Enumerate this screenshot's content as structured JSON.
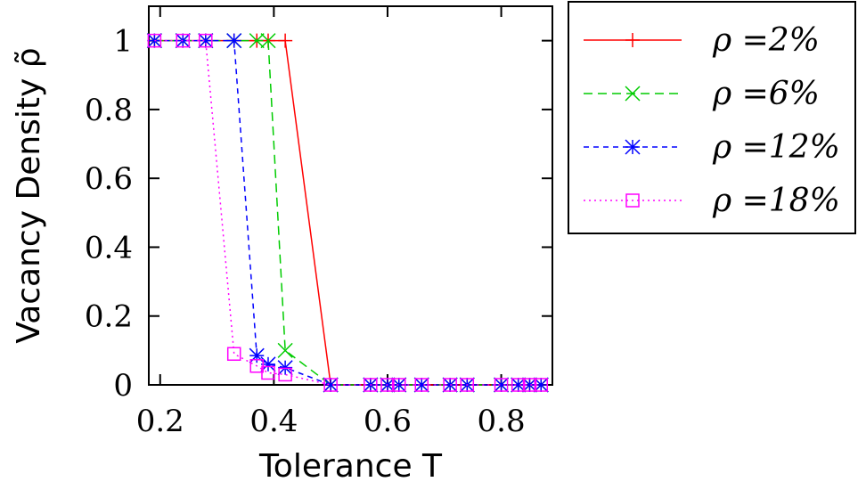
{
  "chart_data": {
    "type": "line",
    "xlabel": "Tolerance T",
    "ylabel": "Vacancy Density ρ̃",
    "xlim": [
      0.18,
      0.89
    ],
    "ylim": [
      0,
      1.1
    ],
    "xticks": [
      0.2,
      0.4,
      0.6,
      0.8
    ],
    "xtick_labels": [
      "0.2",
      "0.4",
      "0.6",
      "0.8"
    ],
    "yticks": [
      0,
      0.2,
      0.4,
      0.6,
      0.8,
      1
    ],
    "ytick_labels": [
      "0",
      "0.2",
      "0.4",
      "0.6",
      "0.8",
      "1"
    ],
    "grid": false,
    "legend": "outside-right",
    "series": [
      {
        "name": "ρ =2%",
        "color": "#ff0000",
        "dash": "solid",
        "marker": "plus",
        "x": [
          0.19,
          0.24,
          0.28,
          0.33,
          0.37,
          0.39,
          0.42,
          0.5,
          0.57,
          0.6,
          0.62,
          0.66,
          0.71,
          0.74,
          0.8,
          0.83,
          0.85,
          0.87
        ],
        "y": [
          1,
          1,
          1,
          1,
          1,
          1,
          1,
          0,
          0,
          0,
          0,
          0,
          0,
          0,
          0,
          0,
          0,
          0
        ]
      },
      {
        "name": "ρ =6%",
        "color": "#00cc00",
        "dash": "dashed",
        "marker": "x",
        "x": [
          0.19,
          0.24,
          0.28,
          0.33,
          0.37,
          0.39,
          0.42,
          0.5,
          0.57,
          0.6,
          0.62,
          0.66,
          0.71,
          0.74,
          0.8,
          0.83,
          0.85,
          0.87
        ],
        "y": [
          1,
          1,
          1,
          1,
          1,
          1,
          0.1,
          0,
          0,
          0,
          0,
          0,
          0,
          0,
          0,
          0,
          0,
          0
        ]
      },
      {
        "name": "ρ =12%",
        "color": "#0000ff",
        "dash": "dashed-fine",
        "marker": "star",
        "x": [
          0.19,
          0.24,
          0.28,
          0.33,
          0.37,
          0.39,
          0.42,
          0.5,
          0.57,
          0.6,
          0.62,
          0.66,
          0.71,
          0.74,
          0.8,
          0.83,
          0.85,
          0.87
        ],
        "y": [
          1,
          1,
          1,
          1,
          0.085,
          0.06,
          0.05,
          0,
          0,
          0,
          0,
          0,
          0,
          0,
          0,
          0,
          0,
          0
        ]
      },
      {
        "name": "ρ =18%",
        "color": "#ff00ff",
        "dash": "dotted",
        "marker": "square",
        "x": [
          0.19,
          0.24,
          0.28,
          0.33,
          0.37,
          0.39,
          0.42,
          0.5,
          0.57,
          0.6,
          0.62,
          0.66,
          0.71,
          0.74,
          0.8,
          0.83,
          0.85,
          0.87
        ],
        "y": [
          1,
          1,
          1,
          0.09,
          0.055,
          0.035,
          0.03,
          0,
          0,
          0,
          0,
          0,
          0,
          0,
          0,
          0,
          0,
          0
        ]
      }
    ]
  }
}
